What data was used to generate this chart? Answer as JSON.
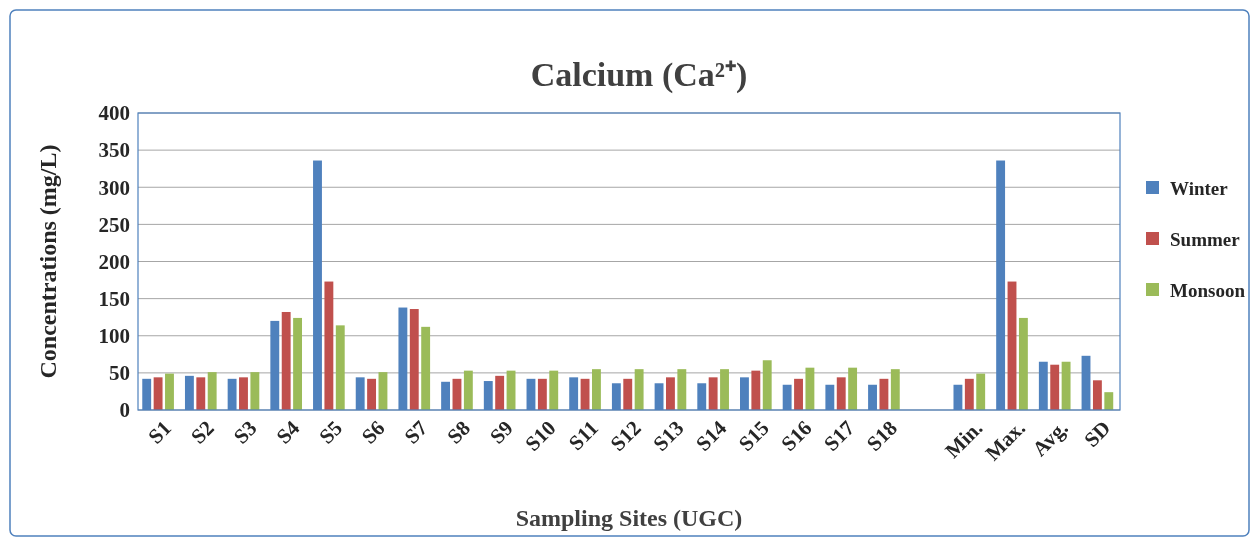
{
  "chart_data": {
    "type": "bar",
    "title": "Calcium (Ca²⁺)",
    "xlabel": "Sampling Sites (UGC)",
    "ylabel": "Concentrations (mg/L)",
    "categories": [
      "S1",
      "S2",
      "S3",
      "S4",
      "S5",
      "S6",
      "S7",
      "S8",
      "S9",
      "S10",
      "S11",
      "S12",
      "S13",
      "S14",
      "S15",
      "S16",
      "S17",
      "S18",
      null,
      "Min.",
      "Max.",
      "Avg.",
      "SD"
    ],
    "series": [
      {
        "name": "Winter",
        "color": "#4f81bd",
        "values": [
          42,
          46,
          42,
          120,
          336,
          44,
          138,
          38,
          39,
          42,
          44,
          36,
          36,
          36,
          44,
          34,
          34,
          34,
          null,
          34,
          336,
          65,
          73
        ]
      },
      {
        "name": "Summer",
        "color": "#c0504d",
        "values": [
          44,
          44,
          44,
          132,
          173,
          42,
          136,
          42,
          46,
          42,
          42,
          42,
          44,
          44,
          53,
          42,
          44,
          42,
          null,
          42,
          173,
          61,
          40
        ]
      },
      {
        "name": "Monsoon",
        "color": "#9bbb59",
        "values": [
          49,
          51,
          51,
          124,
          114,
          51,
          112,
          53,
          53,
          53,
          55,
          55,
          55,
          55,
          67,
          57,
          57,
          55,
          null,
          49,
          124,
          65,
          24
        ]
      }
    ],
    "ylim": [
      0,
      400
    ],
    "yticks": [
      0,
      50,
      100,
      150,
      200,
      250,
      300,
      350,
      400
    ],
    "grid": "y",
    "legend": "right"
  }
}
